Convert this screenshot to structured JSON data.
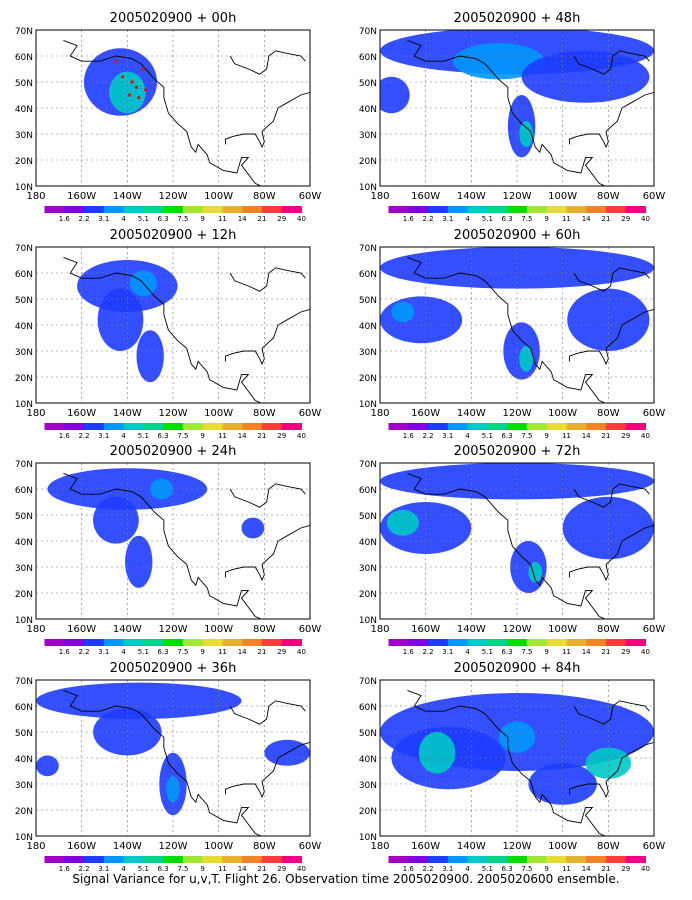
{
  "caption": "Signal Variance for u,v,T. Flight 26. Observation time 2005020900. 2005020600 ensemble.",
  "colorbar": {
    "labels": [
      "1.6",
      "2.2",
      "3.1",
      "4",
      "5.1",
      "6.3",
      "7.5",
      "9",
      "11",
      "14",
      "21",
      "29",
      "40"
    ],
    "colors": [
      "#a000c8",
      "#8200dc",
      "#1e3cff",
      "#0096ff",
      "#00c8c8",
      "#00d28c",
      "#00dc00",
      "#a0e632",
      "#e6dc32",
      "#e6af2d",
      "#f08228",
      "#fa3c3c",
      "#f00082"
    ]
  },
  "chart_data": [
    {
      "type": "heatmap",
      "title": "2005020900 + 00h",
      "x_ticks": [
        "180",
        "160W",
        "140W",
        "120W",
        "100W",
        "80W",
        "60W"
      ],
      "y_ticks": [
        "10N",
        "20N",
        "30N",
        "40N",
        "50N",
        "60N",
        "70N"
      ],
      "xlim": [
        -180,
        -60
      ],
      "ylim": [
        10,
        70
      ],
      "blobs": [
        {
          "lon": -143,
          "lat": 50,
          "rlon": 16,
          "rlat": 13,
          "level": 2
        },
        {
          "lon": -140,
          "lat": 46,
          "rlon": 8,
          "rlat": 8,
          "level": 4
        }
      ],
      "points": [
        [
          -142,
          52
        ],
        [
          -138,
          50
        ],
        [
          -136,
          48
        ],
        [
          -135,
          44
        ],
        [
          -139,
          45
        ],
        [
          -133,
          55
        ],
        [
          -145,
          58
        ],
        [
          -132,
          47
        ]
      ]
    },
    {
      "type": "heatmap",
      "title": "2005020900 + 48h",
      "x_ticks": [
        "180",
        "160W",
        "140W",
        "120W",
        "100W",
        "80W",
        "60W"
      ],
      "y_ticks": [
        "10N",
        "20N",
        "30N",
        "40N",
        "50N",
        "60N",
        "70N"
      ],
      "xlim": [
        -180,
        -60
      ],
      "ylim": [
        10,
        70
      ],
      "blobs": [
        {
          "lon": -120,
          "lat": 62,
          "rlon": 60,
          "rlat": 9,
          "level": 2
        },
        {
          "lon": -128,
          "lat": 58,
          "rlon": 20,
          "rlat": 7,
          "level": 3
        },
        {
          "lon": -90,
          "lat": 52,
          "rlon": 28,
          "rlat": 10,
          "level": 2
        },
        {
          "lon": -175,
          "lat": 45,
          "rlon": 8,
          "rlat": 7,
          "level": 2
        },
        {
          "lon": -118,
          "lat": 33,
          "rlon": 6,
          "rlat": 12,
          "level": 2
        },
        {
          "lon": -116,
          "lat": 30,
          "rlon": 3,
          "rlat": 5,
          "level": 4
        }
      ],
      "points": []
    },
    {
      "type": "heatmap",
      "title": "2005020900 + 12h",
      "x_ticks": [
        "180",
        "160W",
        "140W",
        "120W",
        "100W",
        "80W",
        "60W"
      ],
      "y_ticks": [
        "10N",
        "20N",
        "30N",
        "40N",
        "50N",
        "60N",
        "70N"
      ],
      "xlim": [
        -180,
        -60
      ],
      "ylim": [
        10,
        70
      ],
      "blobs": [
        {
          "lon": -140,
          "lat": 55,
          "rlon": 22,
          "rlat": 10,
          "level": 2
        },
        {
          "lon": -143,
          "lat": 42,
          "rlon": 10,
          "rlat": 12,
          "level": 2
        },
        {
          "lon": -130,
          "lat": 28,
          "rlon": 6,
          "rlat": 10,
          "level": 2
        },
        {
          "lon": -133,
          "lat": 56,
          "rlon": 6,
          "rlat": 5,
          "level": 3
        }
      ],
      "points": []
    },
    {
      "type": "heatmap",
      "title": "2005020900 + 60h",
      "x_ticks": [
        "180",
        "160W",
        "140W",
        "120W",
        "100W",
        "80W",
        "60W"
      ],
      "y_ticks": [
        "10N",
        "20N",
        "30N",
        "40N",
        "50N",
        "60N",
        "70N"
      ],
      "xlim": [
        -180,
        -60
      ],
      "ylim": [
        10,
        70
      ],
      "blobs": [
        {
          "lon": -120,
          "lat": 62,
          "rlon": 60,
          "rlat": 8,
          "level": 2
        },
        {
          "lon": -162,
          "lat": 42,
          "rlon": 18,
          "rlat": 9,
          "level": 2
        },
        {
          "lon": -170,
          "lat": 45,
          "rlon": 5,
          "rlat": 4,
          "level": 3
        },
        {
          "lon": -118,
          "lat": 30,
          "rlon": 8,
          "rlat": 11,
          "level": 2
        },
        {
          "lon": -116,
          "lat": 27,
          "rlon": 3,
          "rlat": 5,
          "level": 4
        },
        {
          "lon": -80,
          "lat": 42,
          "rlon": 18,
          "rlat": 12,
          "level": 2
        }
      ],
      "points": []
    },
    {
      "type": "heatmap",
      "title": "2005020900 + 24h",
      "x_ticks": [
        "180",
        "160W",
        "140W",
        "120W",
        "100W",
        "80W",
        "60W"
      ],
      "y_ticks": [
        "10N",
        "20N",
        "30N",
        "40N",
        "50N",
        "60N",
        "70N"
      ],
      "xlim": [
        -180,
        -60
      ],
      "ylim": [
        10,
        70
      ],
      "blobs": [
        {
          "lon": -140,
          "lat": 60,
          "rlon": 35,
          "rlat": 8,
          "level": 2
        },
        {
          "lon": -145,
          "lat": 48,
          "rlon": 10,
          "rlat": 9,
          "level": 2
        },
        {
          "lon": -135,
          "lat": 32,
          "rlon": 6,
          "rlat": 10,
          "level": 2
        },
        {
          "lon": -125,
          "lat": 60,
          "rlon": 5,
          "rlat": 4,
          "level": 3
        },
        {
          "lon": -85,
          "lat": 45,
          "rlon": 5,
          "rlat": 4,
          "level": 2
        }
      ],
      "points": []
    },
    {
      "type": "heatmap",
      "title": "2005020900 + 72h",
      "x_ticks": [
        "180",
        "160W",
        "140W",
        "120W",
        "100W",
        "80W",
        "60W"
      ],
      "y_ticks": [
        "10N",
        "20N",
        "30N",
        "40N",
        "50N",
        "60N",
        "70N"
      ],
      "xlim": [
        -180,
        -60
      ],
      "ylim": [
        10,
        70
      ],
      "blobs": [
        {
          "lon": -120,
          "lat": 63,
          "rlon": 60,
          "rlat": 7,
          "level": 2
        },
        {
          "lon": -160,
          "lat": 45,
          "rlon": 20,
          "rlat": 10,
          "level": 2
        },
        {
          "lon": -170,
          "lat": 47,
          "rlon": 7,
          "rlat": 5,
          "level": 4
        },
        {
          "lon": -115,
          "lat": 30,
          "rlon": 8,
          "rlat": 10,
          "level": 2
        },
        {
          "lon": -112,
          "lat": 28,
          "rlon": 3,
          "rlat": 4,
          "level": 4
        },
        {
          "lon": -80,
          "lat": 45,
          "rlon": 20,
          "rlat": 12,
          "level": 2
        }
      ],
      "points": []
    },
    {
      "type": "heatmap",
      "title": "2005020900 + 36h",
      "x_ticks": [
        "180",
        "160W",
        "140W",
        "120W",
        "100W",
        "80W",
        "60W"
      ],
      "y_ticks": [
        "10N",
        "20N",
        "30N",
        "40N",
        "50N",
        "60N",
        "70N"
      ],
      "xlim": [
        -180,
        -60
      ],
      "ylim": [
        10,
        70
      ],
      "blobs": [
        {
          "lon": -135,
          "lat": 62,
          "rlon": 45,
          "rlat": 7,
          "level": 2
        },
        {
          "lon": -140,
          "lat": 50,
          "rlon": 15,
          "rlat": 9,
          "level": 2
        },
        {
          "lon": -120,
          "lat": 30,
          "rlon": 6,
          "rlat": 12,
          "level": 2
        },
        {
          "lon": -120,
          "lat": 28,
          "rlon": 3,
          "rlat": 5,
          "level": 3
        },
        {
          "lon": -175,
          "lat": 37,
          "rlon": 5,
          "rlat": 4,
          "level": 2
        },
        {
          "lon": -70,
          "lat": 42,
          "rlon": 10,
          "rlat": 5,
          "level": 2
        }
      ],
      "points": []
    },
    {
      "type": "heatmap",
      "title": "2005020900 + 84h",
      "x_ticks": [
        "180",
        "160W",
        "140W",
        "120W",
        "100W",
        "80W",
        "60W"
      ],
      "y_ticks": [
        "10N",
        "20N",
        "30N",
        "40N",
        "50N",
        "60N",
        "70N"
      ],
      "xlim": [
        -180,
        -60
      ],
      "ylim": [
        10,
        70
      ],
      "blobs": [
        {
          "lon": -120,
          "lat": 50,
          "rlon": 60,
          "rlat": 15,
          "level": 2
        },
        {
          "lon": -150,
          "lat": 40,
          "rlon": 25,
          "rlat": 12,
          "level": 2
        },
        {
          "lon": -155,
          "lat": 42,
          "rlon": 8,
          "rlat": 8,
          "level": 4
        },
        {
          "lon": -120,
          "lat": 48,
          "rlon": 8,
          "rlat": 6,
          "level": 3
        },
        {
          "lon": -100,
          "lat": 30,
          "rlon": 15,
          "rlat": 8,
          "level": 2
        },
        {
          "lon": -80,
          "lat": 38,
          "rlon": 10,
          "rlat": 6,
          "level": 4
        }
      ],
      "points": []
    }
  ]
}
